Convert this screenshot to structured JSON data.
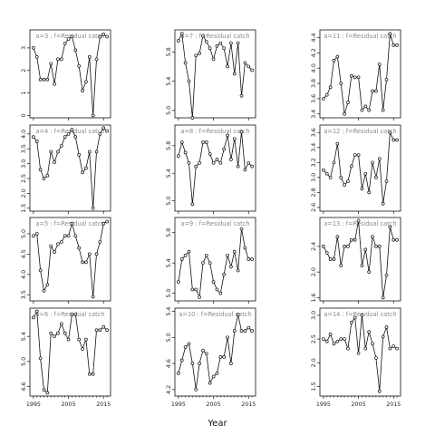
{
  "chart_data": {
    "type": "line",
    "xlabel": "Year",
    "x": [
      1995,
      1996,
      1997,
      1998,
      1999,
      2000,
      2001,
      2002,
      2003,
      2004,
      2005,
      2006,
      2007,
      2008,
      2009,
      2010,
      2011,
      2012,
      2013,
      2014,
      2015,
      2016
    ],
    "x_ticks": [
      "1995",
      "2005",
      "2015"
    ],
    "panels": [
      {
        "title": "a=3  :  f=Residual catch",
        "yticks": [
          "0",
          "1",
          "2",
          "3"
        ],
        "ylim": [
          -0.1,
          3.8
        ],
        "values": [
          3.0,
          2.6,
          1.6,
          1.6,
          1.6,
          2.3,
          1.4,
          2.5,
          2.5,
          3.2,
          3.4,
          3.5,
          2.9,
          2.2,
          1.1,
          1.5,
          2.6,
          0.0,
          2.5,
          3.5,
          3.6,
          3.5
        ]
      },
      {
        "title": "a=7  :  f=Residual catch",
        "yticks": [
          "5.0",
          "5.4",
          "5.8"
        ],
        "ylim": [
          4.9,
          6.1
        ],
        "values": [
          5.95,
          6.05,
          5.65,
          5.4,
          4.9,
          5.75,
          5.78,
          6.02,
          5.94,
          5.85,
          5.7,
          5.88,
          5.92,
          5.85,
          5.6,
          5.92,
          5.5,
          5.92,
          5.2,
          5.65,
          5.6,
          5.55
        ]
      },
      {
        "title": "a=11  :  f=Residual catch",
        "yticks": [
          "3.4",
          "3.6",
          "3.8",
          "4.0",
          "4.2",
          "4.4"
        ],
        "ylim": [
          3.35,
          4.5
        ],
        "values": [
          3.6,
          3.65,
          3.75,
          4.1,
          4.15,
          3.8,
          3.4,
          3.55,
          3.9,
          3.88,
          3.88,
          3.45,
          3.5,
          3.45,
          3.7,
          3.7,
          4.05,
          3.45,
          3.85,
          4.45,
          4.3,
          4.3
        ]
      },
      {
        "title": "a=4  :  f=Residual catch",
        "yticks": [
          "1.5",
          "2.0",
          "2.5",
          "3.0",
          "3.5",
          "4.0"
        ],
        "ylim": [
          1.4,
          4.3
        ],
        "values": [
          3.9,
          3.75,
          2.8,
          2.5,
          2.6,
          3.4,
          3.05,
          3.4,
          3.6,
          3.9,
          4.0,
          4.15,
          3.9,
          3.3,
          2.7,
          2.85,
          3.4,
          1.5,
          3.4,
          4.0,
          4.2,
          4.1
        ]
      },
      {
        "title": "a=8  :  f=Residual catch",
        "yticks": [
          "5.0",
          "5.4",
          "5.8"
        ],
        "ylim": [
          4.85,
          6.1
        ],
        "values": [
          5.65,
          5.85,
          5.7,
          5.55,
          4.95,
          5.5,
          5.55,
          5.85,
          5.85,
          5.68,
          5.55,
          5.6,
          5.55,
          5.75,
          5.95,
          5.6,
          5.9,
          5.5,
          6.0,
          5.45,
          5.55,
          5.5
        ]
      },
      {
        "title": "a=12  :  f=Residual catch",
        "yticks": [
          "2.6",
          "2.8",
          "3.0",
          "3.2",
          "3.4",
          "3.6"
        ],
        "ylim": [
          2.55,
          3.7
        ],
        "values": [
          3.1,
          3.05,
          3.0,
          3.2,
          3.45,
          3.0,
          2.9,
          2.95,
          3.15,
          3.3,
          3.3,
          2.85,
          3.05,
          2.8,
          3.2,
          3.0,
          3.25,
          2.65,
          2.95,
          3.6,
          3.5,
          3.5
        ]
      },
      {
        "title": "a=5  :  f=Residual catch",
        "yticks": [
          "3.5",
          "4.0",
          "4.5",
          "5.0"
        ],
        "ylim": [
          3.35,
          5.4
        ],
        "values": [
          4.95,
          5.0,
          4.1,
          3.6,
          3.75,
          4.7,
          4.55,
          4.75,
          4.8,
          4.95,
          4.95,
          5.25,
          4.95,
          4.65,
          4.3,
          4.3,
          4.5,
          3.45,
          4.5,
          4.8,
          5.25,
          5.3
        ]
      },
      {
        "title": "a=9  :  f=Residual catch",
        "yticks": [
          "5.0",
          "5.4",
          "5.8"
        ],
        "ylim": [
          4.9,
          6.0
        ],
        "values": [
          5.15,
          5.45,
          5.5,
          5.55,
          5.05,
          5.05,
          4.95,
          5.4,
          5.5,
          5.4,
          5.15,
          5.05,
          5.0,
          5.25,
          5.5,
          5.35,
          5.55,
          5.3,
          5.85,
          5.6,
          5.45,
          5.45
        ]
      },
      {
        "title": "a=13  :  f=Residual catch",
        "yticks": [
          "1.6",
          "2.0",
          "2.4"
        ],
        "ylim": [
          1.55,
          2.85
        ],
        "values": [
          2.4,
          2.3,
          2.2,
          2.2,
          2.55,
          2.1,
          2.4,
          2.4,
          2.5,
          2.5,
          2.8,
          2.1,
          2.35,
          2.0,
          2.55,
          2.4,
          2.4,
          1.6,
          1.95,
          2.7,
          2.5,
          2.5
        ]
      },
      {
        "title": "a=6  :  f=Residual catch",
        "yticks": [
          "4.6",
          "5.0",
          "5.4"
        ],
        "ylim": [
          4.45,
          5.85
        ],
        "values": [
          5.7,
          5.8,
          5.05,
          4.55,
          4.5,
          5.45,
          5.4,
          5.45,
          5.6,
          5.45,
          5.35,
          5.75,
          5.75,
          5.35,
          5.2,
          5.35,
          4.8,
          4.8,
          5.5,
          5.5,
          5.55,
          5.5
        ]
      },
      {
        "title": "a=10  :  f=Residual catch",
        "yticks": [
          "4.2",
          "4.6",
          "5.0",
          "5.4"
        ],
        "ylim": [
          4.1,
          5.45
        ],
        "values": [
          4.45,
          4.65,
          4.85,
          4.9,
          4.6,
          4.2,
          4.6,
          4.8,
          4.75,
          4.3,
          4.4,
          4.45,
          4.7,
          4.7,
          5.0,
          4.6,
          5.1,
          5.35,
          5.1,
          5.1,
          5.15,
          5.1
        ]
      },
      {
        "title": "a=14  :  f=Residual catch",
        "yticks": [
          "1.5",
          "2.0",
          "2.5",
          "3.0"
        ],
        "ylim": [
          1.3,
          3.15
        ],
        "values": [
          2.5,
          2.45,
          2.6,
          2.4,
          2.45,
          2.5,
          2.5,
          2.3,
          2.85,
          2.95,
          2.2,
          3.0,
          2.3,
          2.65,
          2.4,
          2.1,
          1.4,
          2.55,
          2.75,
          2.3,
          2.35,
          2.3
        ]
      }
    ]
  }
}
